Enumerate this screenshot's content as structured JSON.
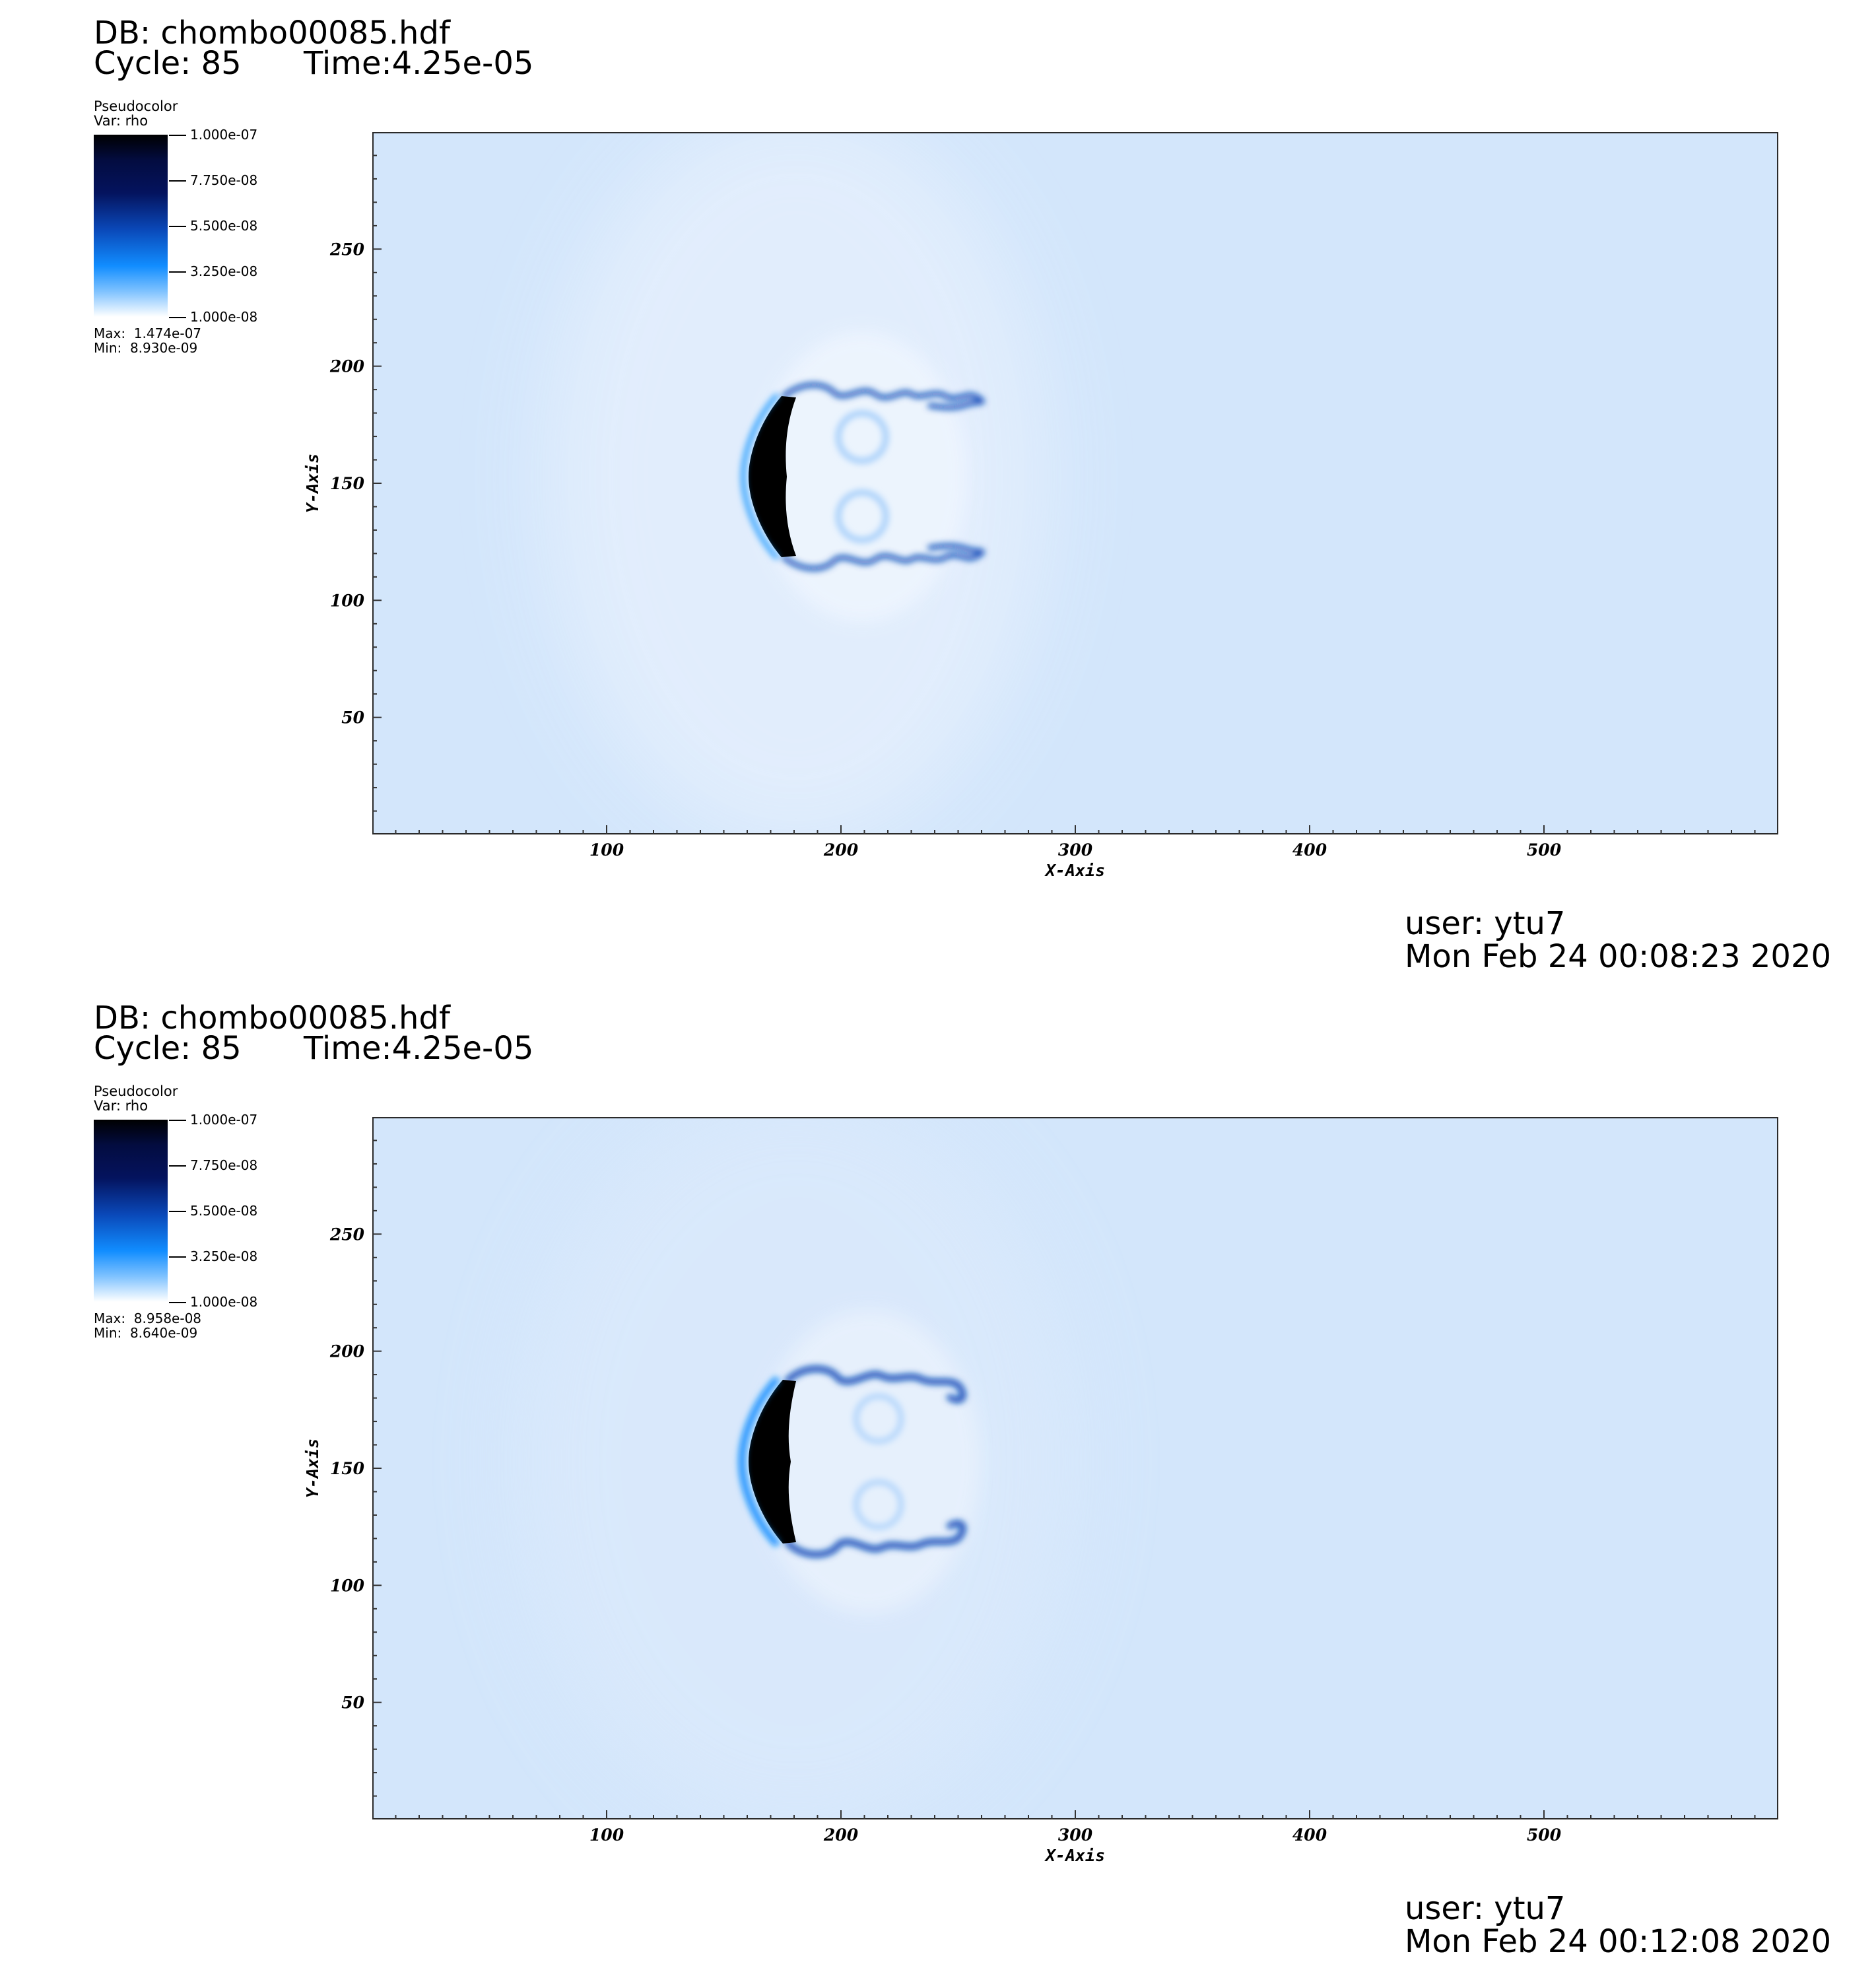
{
  "panels": [
    {
      "db_label": "DB: chombo00085.hdf",
      "cycle_label": "Cycle: 85",
      "time_label": "Time:4.25e-05",
      "legend": {
        "title": "Pseudocolor",
        "var": "Var: rho",
        "ticks": [
          "1.000e-07",
          "7.750e-08",
          "5.500e-08",
          "3.250e-08",
          "1.000e-08"
        ],
        "max": "Max:  1.474e-07",
        "min": "Min:  8.930e-09"
      },
      "user": "user: ytu7",
      "date": "Mon Feb 24 00:08:23 2020"
    },
    {
      "db_label": "DB: chombo00085.hdf",
      "cycle_label": "Cycle: 85",
      "time_label": "Time:4.25e-05",
      "legend": {
        "title": "Pseudocolor",
        "var": "Var: rho",
        "ticks": [
          "1.000e-07",
          "7.750e-08",
          "5.500e-08",
          "3.250e-08",
          "1.000e-08"
        ],
        "max": "Max:  8.958e-08",
        "min": "Min:  8.640e-09"
      },
      "user": "user: ytu7",
      "date": "Mon Feb 24 00:12:08 2020"
    }
  ],
  "chart_data": [
    {
      "type": "heatmap",
      "title": "",
      "variable": "rho",
      "xlabel": "X-Axis",
      "ylabel": "Y-Axis",
      "xlim": [
        0,
        600
      ],
      "ylim": [
        0,
        300
      ],
      "xticks": [
        100,
        200,
        300,
        400,
        500
      ],
      "yticks": [
        50,
        100,
        150,
        200,
        250
      ],
      "colorbar": {
        "min": 1e-08,
        "max": 1e-07,
        "ticks": [
          1e-07,
          7.75e-08,
          5.5e-08,
          3.25e-08,
          1e-08
        ]
      },
      "data_max": 1.474e-07,
      "data_min": 8.93e-09,
      "colors": {
        "background": "#d3e6fb",
        "dense": "#000000",
        "mid": "#0a48b8",
        "light": "#7fc2ff"
      }
    },
    {
      "type": "heatmap",
      "title": "",
      "variable": "rho",
      "xlabel": "X-Axis",
      "ylabel": "Y-Axis",
      "xlim": [
        0,
        600
      ],
      "ylim": [
        0,
        300
      ],
      "xticks": [
        100,
        200,
        300,
        400,
        500
      ],
      "yticks": [
        50,
        100,
        150,
        200,
        250
      ],
      "colorbar": {
        "min": 1e-08,
        "max": 1e-07,
        "ticks": [
          1e-07,
          7.75e-08,
          5.5e-08,
          3.25e-08,
          1e-08
        ]
      },
      "data_max": 8.958e-08,
      "data_min": 8.64e-09,
      "colors": {
        "background": "#d3e6fb",
        "dense": "#000000",
        "mid": "#0a48b8",
        "light": "#7fc2ff"
      }
    }
  ]
}
